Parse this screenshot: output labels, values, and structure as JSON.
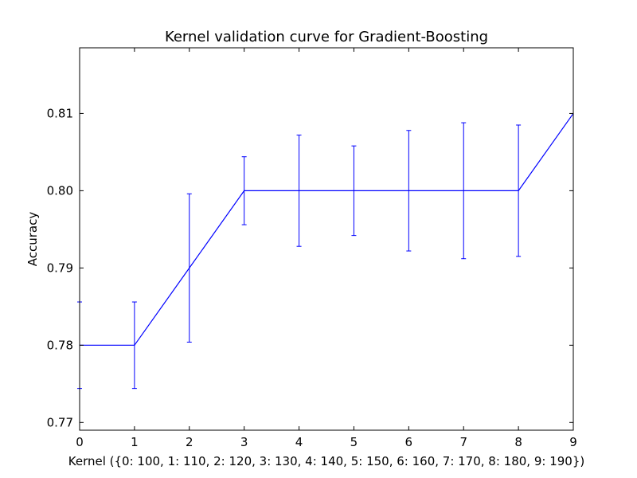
{
  "chart_data": {
    "type": "line",
    "title": "Kernel validation curve for Gradient-Boosting",
    "xlabel": "Kernel ({0: 100, 1: 110, 2: 120, 3: 130, 4: 140, 5: 150, 6: 160, 7: 170, 8: 180, 9: 190})",
    "ylabel": "Accuracy",
    "xlim": [
      0,
      9
    ],
    "ylim": [
      0.769,
      0.8185
    ],
    "xticks": [
      "0",
      "1",
      "2",
      "3",
      "4",
      "5",
      "6",
      "7",
      "8",
      "9"
    ],
    "yticks": [
      "0.77",
      "0.78",
      "0.79",
      "0.80",
      "0.81"
    ],
    "ytick_values": [
      0.77,
      0.78,
      0.79,
      0.8,
      0.81
    ],
    "grid": false,
    "color": "#0000ff",
    "series": [
      {
        "x": [
          0,
          1,
          2,
          3,
          4,
          5,
          6,
          7,
          8,
          9
        ],
        "y": [
          0.78,
          0.78,
          0.79,
          0.8,
          0.8,
          0.8,
          0.8,
          0.8,
          0.8,
          0.81
        ],
        "err": [
          0.0056,
          0.0056,
          0.0096,
          0.0044,
          0.0072,
          0.0058,
          0.0078,
          0.0088,
          0.0085,
          0.0
        ]
      }
    ]
  }
}
